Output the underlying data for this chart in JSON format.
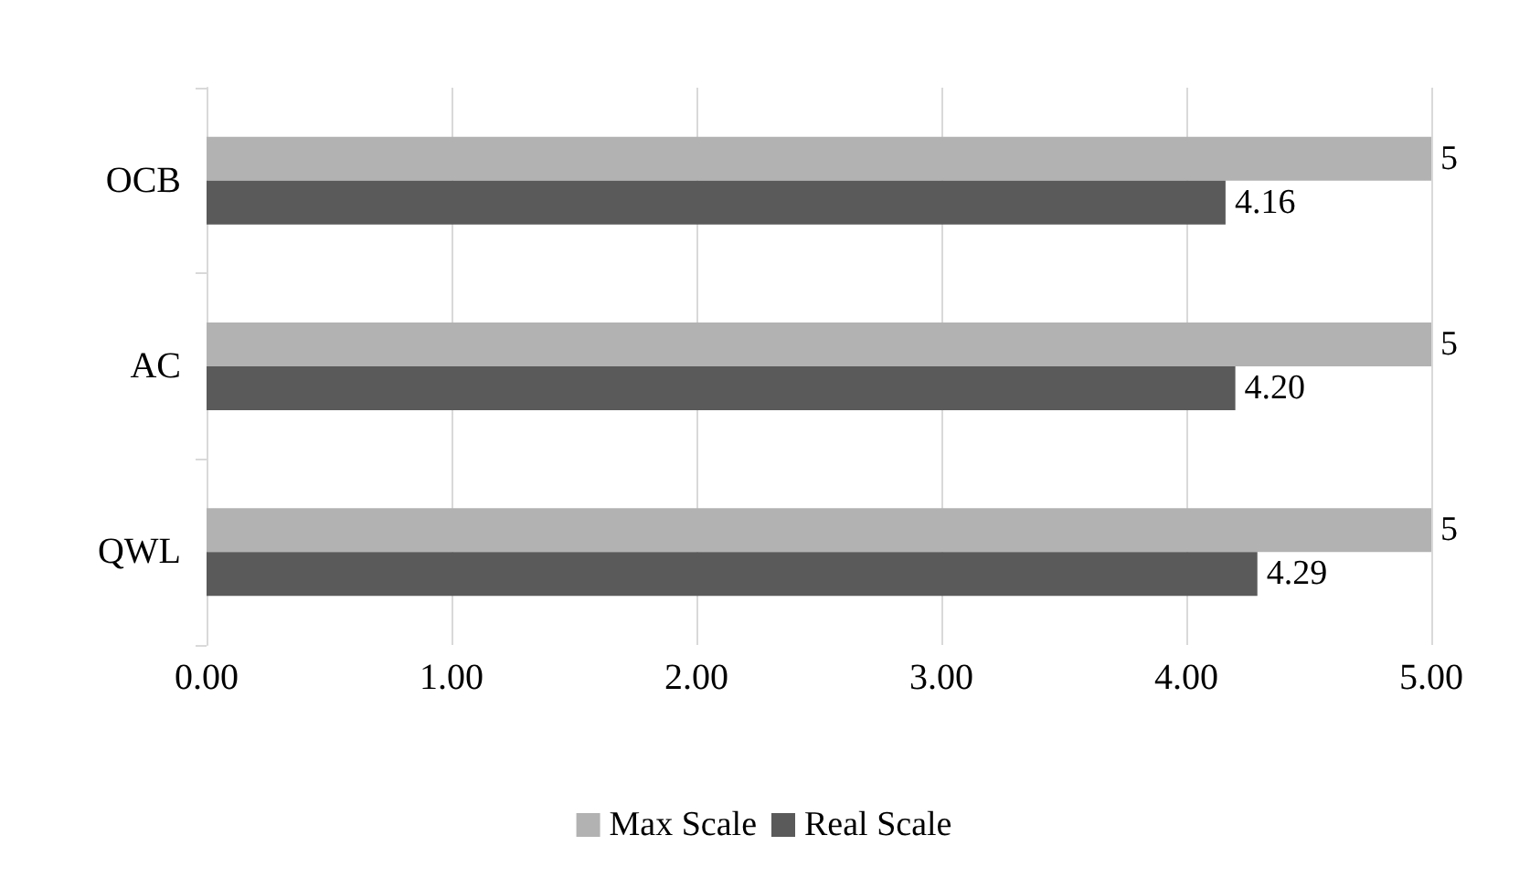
{
  "chart_data": {
    "type": "bar",
    "orientation": "horizontal",
    "categories": [
      "OCB",
      "AC",
      "QWL"
    ],
    "series": [
      {
        "name": "Max Scale",
        "color": "#b2b2b2",
        "values": [
          5,
          5,
          5
        ],
        "value_labels": [
          "5",
          "5",
          "5"
        ]
      },
      {
        "name": "Real Scale",
        "color": "#5a5a5a",
        "values": [
          4.16,
          4.2,
          4.29
        ],
        "value_labels": [
          "4.16",
          "4.20",
          "4.29"
        ]
      }
    ],
    "xlim": [
      0,
      5
    ],
    "xticks": [
      {
        "value": 0,
        "label": "0.00"
      },
      {
        "value": 1,
        "label": "1.00"
      },
      {
        "value": 2,
        "label": "2.00"
      },
      {
        "value": 3,
        "label": "3.00"
      },
      {
        "value": 4,
        "label": "4.00"
      },
      {
        "value": 5,
        "label": "5.00"
      }
    ],
    "grid": "x",
    "legend": "bottom"
  }
}
